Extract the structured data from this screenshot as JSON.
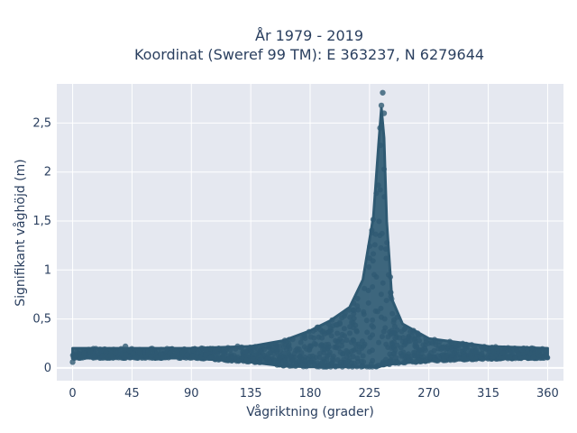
{
  "chart_data": {
    "type": "scatter",
    "title_line1": "År 1979 - 2019",
    "title_line2": "Koordinat (Sweref 99 TM): E 363237, N 6279644",
    "xlabel": "Vågriktning (grader)",
    "ylabel": "Signifikant våghöjd (m)",
    "xlim": [
      -12,
      372
    ],
    "ylim": [
      -0.13,
      2.9
    ],
    "xticks": [
      0,
      45,
      90,
      135,
      180,
      225,
      270,
      315,
      360
    ],
    "xtick_labels": [
      "0",
      "45",
      "90",
      "135",
      "180",
      "225",
      "270",
      "315",
      "360"
    ],
    "yticks": [
      0,
      0.5,
      1,
      1.5,
      2,
      2.5
    ],
    "ytick_labels": [
      "0",
      "0,5",
      "1",
      "1,5",
      "2",
      "2,5"
    ],
    "grid": true,
    "marker_color": "#2f5a73",
    "plot_bgcolor": "#e5e8f0",
    "envelope": {
      "x": [
        0,
        45,
        90,
        135,
        160,
        180,
        195,
        210,
        220,
        228,
        232,
        234,
        236,
        238,
        242,
        250,
        270,
        315,
        360
      ],
      "y_max": [
        0.2,
        0.2,
        0.2,
        0.22,
        0.28,
        0.38,
        0.48,
        0.62,
        0.9,
        1.55,
        2.3,
        2.65,
        2.35,
        1.5,
        0.7,
        0.45,
        0.3,
        0.22,
        0.2
      ],
      "y_min": [
        0.1,
        0.1,
        0.1,
        0.06,
        0.02,
        0.01,
        0.01,
        0.01,
        0.01,
        0.01,
        0.01,
        0.02,
        0.02,
        0.03,
        0.04,
        0.05,
        0.07,
        0.09,
        0.1
      ]
    },
    "outliers": [
      {
        "x": 235,
        "y": 2.81
      },
      {
        "x": 234,
        "y": 2.68
      },
      {
        "x": 236,
        "y": 2.6
      },
      {
        "x": 233,
        "y": 2.45
      },
      {
        "x": 0,
        "y": 0.06
      },
      {
        "x": 125,
        "y": 0.22
      },
      {
        "x": 260,
        "y": 0.06
      },
      {
        "x": 40,
        "y": 0.22
      }
    ]
  }
}
